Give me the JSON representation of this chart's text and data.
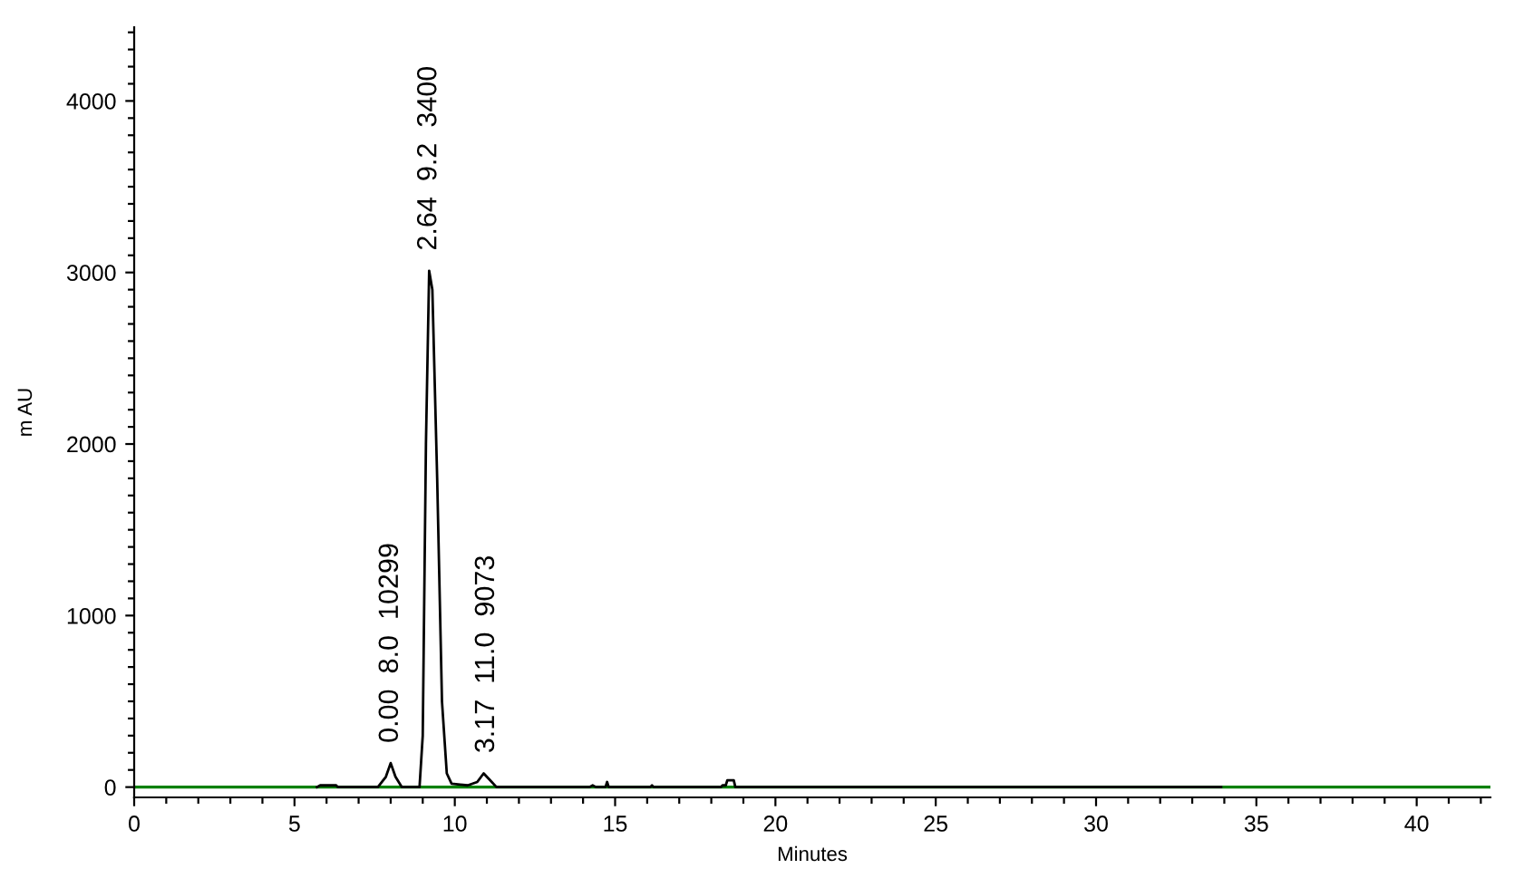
{
  "chart_data": {
    "type": "line",
    "xlabel": "Minutes",
    "ylabel": "m AU",
    "xlim": [
      0,
      42.3
    ],
    "ylim": [
      -60,
      4430
    ],
    "xticks": [
      0,
      {
        "value": 1,
        "label": null
      },
      {
        "value": 2,
        "label": null
      },
      {
        "value": 3,
        "label": null
      },
      {
        "value": 4,
        "label": null
      },
      5,
      {
        "value": 6,
        "label": null
      },
      {
        "value": 7,
        "label": null
      },
      {
        "value": 8,
        "label": null
      },
      {
        "value": 9,
        "label": null
      },
      10,
      {
        "value": 11,
        "label": null
      },
      {
        "value": 12,
        "label": null
      },
      {
        "value": 13,
        "label": null
      },
      {
        "value": 14,
        "label": null
      },
      15,
      {
        "value": 16,
        "label": null
      },
      {
        "value": 17,
        "label": null
      },
      {
        "value": 18,
        "label": null
      },
      {
        "value": 19,
        "label": null
      },
      20,
      {
        "value": 21,
        "label": null
      },
      {
        "value": 22,
        "label": null
      },
      {
        "value": 23,
        "label": null
      },
      {
        "value": 24,
        "label": null
      },
      25,
      {
        "value": 26,
        "label": null
      },
      {
        "value": 27,
        "label": null
      },
      {
        "value": 28,
        "label": null
      },
      {
        "value": 29,
        "label": null
      },
      30,
      {
        "value": 31,
        "label": null
      },
      {
        "value": 32,
        "label": null
      },
      {
        "value": 33,
        "label": null
      },
      {
        "value": 34,
        "label": null
      },
      35,
      {
        "value": 36,
        "label": null
      },
      {
        "value": 37,
        "label": null
      },
      {
        "value": 38,
        "label": null
      },
      {
        "value": 39,
        "label": null
      },
      40,
      {
        "value": 41,
        "label": null
      },
      {
        "value": 42,
        "label": null
      }
    ],
    "yticks": [
      0,
      {
        "value": 100,
        "label": null
      },
      {
        "value": 200,
        "label": null
      },
      {
        "value": 300,
        "label": null
      },
      {
        "value": 400,
        "label": null
      },
      {
        "value": 500,
        "label": null
      },
      {
        "value": 600,
        "label": null
      },
      {
        "value": 700,
        "label": null
      },
      {
        "value": 800,
        "label": null
      },
      {
        "value": 900,
        "label": null
      },
      1000,
      {
        "value": 1100,
        "label": null
      },
      {
        "value": 1200,
        "label": null
      },
      {
        "value": 1300,
        "label": null
      },
      {
        "value": 1400,
        "label": null
      },
      {
        "value": 1500,
        "label": null
      },
      {
        "value": 1600,
        "label": null
      },
      {
        "value": 1700,
        "label": null
      },
      {
        "value": 1800,
        "label": null
      },
      {
        "value": 1900,
        "label": null
      },
      2000,
      {
        "value": 2100,
        "label": null
      },
      {
        "value": 2200,
        "label": null
      },
      {
        "value": 2300,
        "label": null
      },
      {
        "value": 2400,
        "label": null
      },
      {
        "value": 2500,
        "label": null
      },
      {
        "value": 2600,
        "label": null
      },
      {
        "value": 2700,
        "label": null
      },
      {
        "value": 2800,
        "label": null
      },
      {
        "value": 2900,
        "label": null
      },
      3000,
      {
        "value": 3100,
        "label": null
      },
      {
        "value": 3200,
        "label": null
      },
      {
        "value": 3300,
        "label": null
      },
      {
        "value": 3400,
        "label": null
      },
      {
        "value": 3500,
        "label": null
      },
      {
        "value": 3600,
        "label": null
      },
      {
        "value": 3700,
        "label": null
      },
      {
        "value": 3800,
        "label": null
      },
      {
        "value": 3900,
        "label": null
      },
      4000,
      {
        "value": 4100,
        "label": null
      },
      {
        "value": 4200,
        "label": null
      },
      {
        "value": 4300,
        "label": null
      },
      {
        "value": 4400,
        "label": null
      }
    ],
    "grid": false,
    "legend": false,
    "marker": "none",
    "line_style": "solid",
    "ref_lines": [
      {
        "axis": "y",
        "value": 0,
        "color": "#008000",
        "line_style": "solid"
      }
    ],
    "series": [
      {
        "color": "#000000",
        "x": [
          5.7,
          5.8,
          6.3,
          6.35,
          7.6,
          7.85,
          8.0,
          8.15,
          8.35,
          8.9,
          9.0,
          9.1,
          9.2,
          9.3,
          9.45,
          9.6,
          9.75,
          9.9,
          10.4,
          10.7,
          10.9,
          11.1,
          11.3,
          14.2,
          14.3,
          14.4,
          14.7,
          14.75,
          14.8,
          16.1,
          16.15,
          16.2,
          18.3,
          18.35,
          18.45,
          18.5,
          18.7,
          18.75,
          33.9
        ],
        "values": [
          0,
          10,
          10,
          0,
          0,
          60,
          140,
          60,
          0,
          0,
          300,
          2000,
          3010,
          2900,
          1800,
          500,
          80,
          20,
          10,
          30,
          80,
          40,
          0,
          0,
          10,
          0,
          0,
          30,
          0,
          0,
          10,
          0,
          0,
          10,
          10,
          40,
          40,
          0,
          0
        ]
      }
    ],
    "annotations": [
      {
        "text": "0.00  8.0  10299",
        "x": 8.0,
        "y": 140
      },
      {
        "text": "2.64  9.2  3400",
        "x": 9.2,
        "y": 3010
      },
      {
        "text": "3.17  11.0  9073",
        "x": 11.0,
        "y": 80
      }
    ]
  }
}
